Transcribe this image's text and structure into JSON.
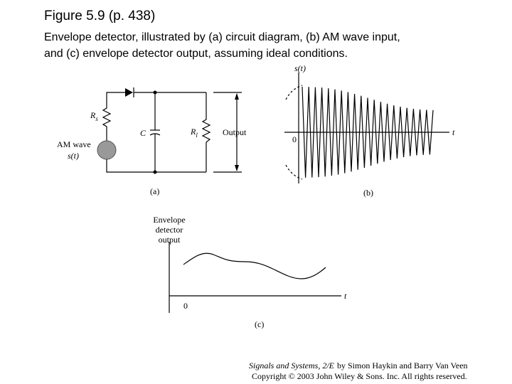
{
  "header": {
    "title": "Figure 5.9  (p. 438)",
    "caption": [
      "Envelope detector, illustrated by (a) circuit diagram, (b) AM wave input,",
      "and (c) envelope detector output, assuming ideal conditions."
    ]
  },
  "panel_a": {
    "source_resistor": {
      "symbol": "R",
      "subscript": "s"
    },
    "capacitor": "C",
    "load_resistor": {
      "symbol": "R",
      "subscript": "l"
    },
    "output": "Output",
    "source": [
      "AM wave",
      "s(t)"
    ],
    "label": "(a)"
  },
  "panel_b": {
    "y_axis": "s(t)",
    "x_axis": "t",
    "origin": "0",
    "label": "(b)"
  },
  "panel_c": {
    "y_axis": [
      "Envelope",
      "detector",
      "output"
    ],
    "x_axis": "t",
    "origin": "0",
    "label": "(c)"
  },
  "footer": {
    "book": "Signals and Systems, 2/E",
    "authors": "by Simon Haykin and Barry Van Veen",
    "copyright": "Copyright © 2003 John Wiley & Sons. Inc. All rights reserved."
  }
}
